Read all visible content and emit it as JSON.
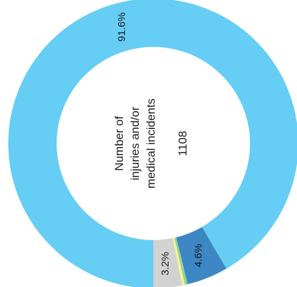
{
  "chart_data": {
    "type": "pie",
    "style": "donut",
    "center_label_lines": [
      "Number of",
      "injuries and/or",
      "medical incidents"
    ],
    "center_value": "1108",
    "slices": [
      {
        "label": "91.6%",
        "value": 91.6,
        "color": "#66cdf5"
      },
      {
        "label": "4.6%",
        "value": 4.6,
        "color": "#3d87c4"
      },
      {
        "label": "",
        "value": 0.3,
        "color": "#8fd39a"
      },
      {
        "label": "",
        "value": 0.3,
        "color": "#f4f48a"
      },
      {
        "label": "3.2%",
        "value": 3.2,
        "color": "#d2d2d2"
      }
    ]
  }
}
